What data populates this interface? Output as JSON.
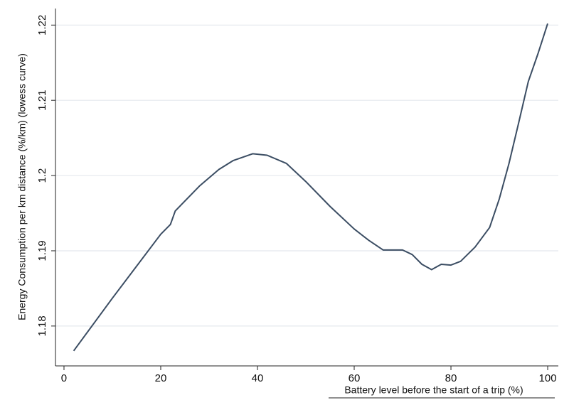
{
  "chart_data": {
    "type": "line",
    "x_label": "Battery level before the start of a trip (%)",
    "y_label": "Energy Consumption per km distance (%/km) (lowess curve)",
    "x": [
      2,
      10,
      20,
      22,
      23,
      28,
      32,
      35,
      39,
      42,
      46,
      50,
      55,
      60,
      63,
      66,
      70,
      72,
      74,
      76,
      78,
      80,
      82,
      85,
      88,
      90,
      92,
      94,
      96,
      98,
      100
    ],
    "values": [
      1.1767,
      1.1837,
      1.1922,
      1.1935,
      1.1953,
      1.1986,
      1.2008,
      1.202,
      1.2029,
      1.2027,
      1.2016,
      1.1992,
      1.1959,
      1.1929,
      1.1914,
      1.1901,
      1.1901,
      1.1895,
      1.1882,
      1.1875,
      1.1882,
      1.1881,
      1.1886,
      1.1905,
      1.1931,
      1.1969,
      1.2016,
      1.207,
      1.2125,
      1.2162,
      1.2202
    ],
    "color": "#3b4d63",
    "xlim": [
      -1.76,
      102.2
    ],
    "xticks": [
      0,
      20,
      40,
      60,
      80,
      100
    ],
    "ylim": [
      1.1747,
      1.2222
    ],
    "yticks": [
      1.18,
      1.19,
      1.2,
      1.21,
      1.22
    ],
    "grid": true
  }
}
